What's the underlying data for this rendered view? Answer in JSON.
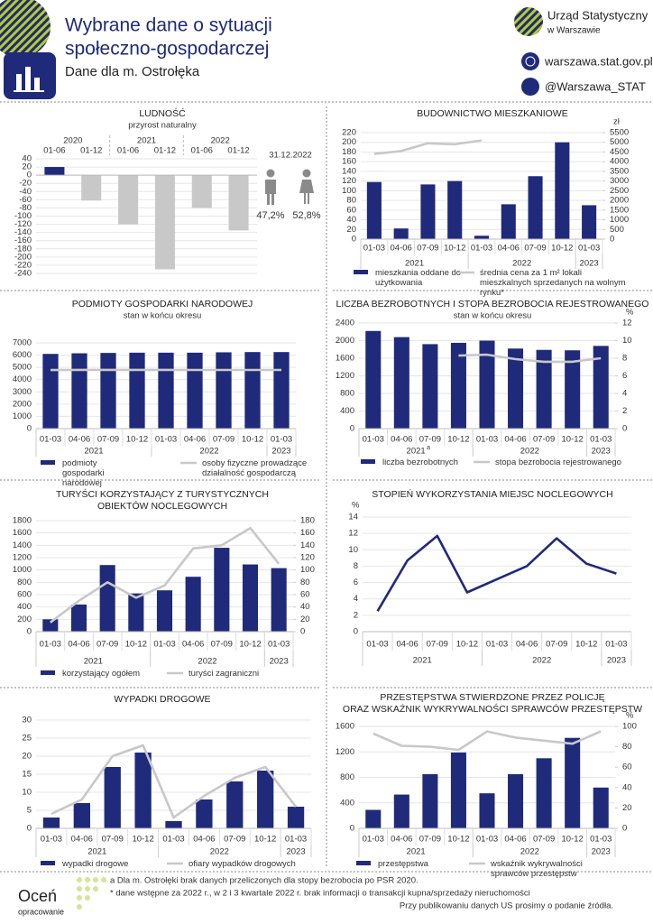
{
  "header": {
    "title": [
      "Wybrane dane o sytuacji",
      "społeczno-gospodarczej"
    ],
    "subtitle": "Dane dla m. Ostrołęka",
    "org": [
      "Urząd Statystyczny",
      "w Warszawie"
    ],
    "website": "warszawa.stat.gov.pl",
    "twitter": "@Warszawa_STAT"
  },
  "chart_data": [
    {
      "type": "bar",
      "title": "LUDNOŚĆ",
      "subtitle": "przyrost naturalny",
      "groups": [
        {
          "label": "2020",
          "categories": [
            "01-06",
            "01-12"
          ]
        },
        {
          "label": "2021",
          "categories": [
            "01-06",
            "01-12"
          ]
        },
        {
          "label": "2022",
          "categories": [
            "01-06",
            "01-12"
          ]
        }
      ],
      "values": [
        20,
        -62,
        -120,
        -230,
        -80,
        -135
      ],
      "color": "#1f2a7a",
      "negative_color": "#c8c8c8",
      "ylim": [
        -240,
        40
      ],
      "yticks": [
        40,
        20,
        0,
        -20,
        -40,
        -60,
        -80,
        -100,
        -120,
        -140,
        -160,
        -180,
        -200,
        -220,
        -240
      ],
      "grid": true,
      "date": "31.12.2022",
      "shares": {
        "values": [
          47.2,
          52.8
        ],
        "value_labels": [
          "47,2%",
          "52,8%"
        ]
      }
    },
    {
      "type": "bar-line",
      "title": "BUDOWNICTWO MIESZKANIOWE",
      "groups": [
        {
          "label": "2021",
          "categories": [
            "01-03",
            "04-06",
            "07-09",
            "10-12"
          ]
        },
        {
          "label": "2022",
          "categories": [
            "01-03",
            "04-06",
            "07-09",
            "10-12"
          ]
        },
        {
          "label": "2023",
          "categories": [
            "01-03"
          ]
        }
      ],
      "series": [
        {
          "name": "mieszkania oddane do użytkowania",
          "type": "bar",
          "color": "#1f2a7a",
          "values": [
            118,
            22,
            113,
            120,
            7,
            72,
            130,
            200,
            70
          ]
        },
        {
          "name": "średnia cena za 1 m² lokali mieszkalnych sprzedanych na wolnym rynku*",
          "type": "line",
          "axis": "y2",
          "color": "#c8c8c8",
          "values": [
            4400,
            4550,
            4950,
            4900,
            5100,
            null,
            null,
            null,
            null
          ]
        }
      ],
      "ylim": [
        0,
        220
      ],
      "yticks": [
        0,
        20,
        40,
        60,
        80,
        100,
        120,
        140,
        160,
        180,
        200,
        220
      ],
      "y2lim": [
        0,
        5500
      ],
      "y2ticks": [
        0,
        500,
        1000,
        1500,
        2000,
        2500,
        3000,
        3500,
        4000,
        4500,
        5000,
        5500
      ],
      "y2_label": "zł",
      "grid": true
    },
    {
      "type": "bar-line",
      "title": "PODMIOTY GOSPODARKI NARODOWEJ",
      "subtitle": "stan w końcu okresu",
      "groups": [
        {
          "label": "2021",
          "categories": [
            "01-03",
            "04-06",
            "07-09",
            "10-12"
          ]
        },
        {
          "label": "2022",
          "categories": [
            "01-03",
            "04-06",
            "07-09",
            "10-12"
          ]
        },
        {
          "label": "2023",
          "categories": [
            "01-03"
          ]
        }
      ],
      "series": [
        {
          "name": "podmioty gospodarki narodowej",
          "type": "bar",
          "color": "#1f2a7a",
          "values": [
            6100,
            6150,
            6180,
            6200,
            6200,
            6200,
            6230,
            6250,
            6250
          ]
        },
        {
          "name": "osoby fizyczne prowadzące działalność gospodarczą",
          "type": "line",
          "color": "#c8c8c8",
          "values": [
            4780,
            4800,
            4800,
            4800,
            4800,
            4790,
            4790,
            4790,
            4790
          ]
        }
      ],
      "ylim": [
        0,
        7000
      ],
      "yticks": [
        0,
        1000,
        2000,
        3000,
        4000,
        5000,
        6000,
        7000
      ],
      "grid": true
    },
    {
      "type": "bar-line",
      "title": "LICZBA BEZROBOTNYCH I STOPA BEZROBOCIA REJESTROWANEGO",
      "subtitle": "stan w końcu okresu",
      "groups": [
        {
          "label": "2021",
          "note": "a",
          "categories": [
            "01-03",
            "04-06",
            "07-09",
            "10-12"
          ]
        },
        {
          "label": "2022",
          "categories": [
            "01-03",
            "04-06",
            "07-09",
            "10-12"
          ]
        },
        {
          "label": "2023",
          "categories": [
            "01-03"
          ]
        }
      ],
      "series": [
        {
          "name": "liczba bezrobotnych",
          "type": "bar",
          "color": "#1f2a7a",
          "values": [
            2220,
            2080,
            1920,
            1950,
            2000,
            1820,
            1790,
            1780,
            1880
          ]
        },
        {
          "name": "stopa bezrobocia rejestrowanego",
          "type": "line",
          "axis": "y2",
          "color": "#c8c8c8",
          "values": [
            null,
            null,
            null,
            8.3,
            8.4,
            7.9,
            7.6,
            7.6,
            8.0
          ]
        }
      ],
      "ylim": [
        0,
        2400
      ],
      "yticks": [
        0,
        400,
        800,
        1200,
        1600,
        2000,
        2400
      ],
      "y2lim": [
        0,
        12
      ],
      "y2ticks": [
        0,
        2,
        4,
        6,
        8,
        10,
        12
      ],
      "y2_label": "%",
      "grid": true
    },
    {
      "type": "bar-line",
      "title": [
        "TURYŚCI KORZYSTAJĄCY Z TURYSTYCZNYCH",
        "OBIEKTÓW NOCLEGOWYCH"
      ],
      "groups": [
        {
          "label": "2021",
          "categories": [
            "01-03",
            "04-06",
            "07-09",
            "10-12"
          ]
        },
        {
          "label": "2022",
          "categories": [
            "01-03",
            "04-06",
            "07-09",
            "10-12"
          ]
        },
        {
          "label": "2023",
          "categories": [
            "01-03"
          ]
        }
      ],
      "series": [
        {
          "name": "korzystający ogółem",
          "type": "bar",
          "color": "#1f2a7a",
          "values": [
            200,
            440,
            1080,
            620,
            670,
            890,
            1360,
            1090,
            1030
          ]
        },
        {
          "name": "turyści zagraniczni",
          "type": "line",
          "axis": "y2",
          "color": "#c8c8c8",
          "values": [
            15,
            50,
            80,
            55,
            75,
            135,
            140,
            168,
            110
          ]
        }
      ],
      "ylim": [
        0,
        1800
      ],
      "yticks": [
        0,
        200,
        400,
        600,
        800,
        1000,
        1200,
        1400,
        1600,
        1800
      ],
      "y2lim": [
        0,
        180
      ],
      "y2ticks": [
        0,
        20,
        40,
        60,
        80,
        100,
        120,
        140,
        160,
        180
      ],
      "grid": true
    },
    {
      "type": "line",
      "title": "STOPIEŃ WYKORZYSTANIA MIEJSC NOCLEGOWYCH",
      "groups": [
        {
          "label": "2021",
          "categories": [
            "01-03",
            "04-06",
            "07-09",
            "10-12"
          ]
        },
        {
          "label": "2022",
          "categories": [
            "01-03",
            "04-06",
            "07-09",
            "10-12"
          ]
        },
        {
          "label": "2023",
          "categories": [
            "01-03"
          ]
        }
      ],
      "series": [
        {
          "type": "line",
          "color": "#1f2a7a",
          "values": [
            2.5,
            8.7,
            11.7,
            4.8,
            6.4,
            8.0,
            11.4,
            8.3,
            7.1
          ]
        }
      ],
      "ylim": [
        0,
        14
      ],
      "yticks": [
        0,
        2,
        4,
        6,
        8,
        10,
        12,
        14
      ],
      "y_label": "%",
      "grid": true
    },
    {
      "type": "bar-line",
      "title": "WYPADKI DROGOWE",
      "groups": [
        {
          "label": "2021",
          "categories": [
            "01-03",
            "04-06",
            "07-09",
            "10-12"
          ]
        },
        {
          "label": "2022",
          "categories": [
            "01-03",
            "04-06",
            "07-09",
            "10-12"
          ]
        },
        {
          "label": "2023",
          "categories": [
            "01-03"
          ]
        }
      ],
      "series": [
        {
          "name": "wypadki drogowe",
          "type": "bar",
          "color": "#1f2a7a",
          "values": [
            3,
            7,
            17,
            21,
            2,
            8,
            13,
            16,
            6
          ]
        },
        {
          "name": "ofiary wypadków drogowych",
          "type": "line",
          "color": "#c8c8c8",
          "values": [
            4,
            8,
            20,
            23,
            3,
            9,
            14,
            17,
            6
          ]
        }
      ],
      "ylim": [
        0,
        30
      ],
      "yticks": [
        0,
        5,
        10,
        15,
        20,
        25,
        30
      ],
      "grid": true
    },
    {
      "type": "bar-line",
      "title": [
        "PRZESTĘPSTWA STWIERDZONE PRZEZ POLICJĘ",
        "ORAZ WSKAŹNIK WYKRYWALNOŚCI SPRAWCÓW PRZESTĘPSTW"
      ],
      "groups": [
        {
          "label": "2021",
          "categories": [
            "01-03",
            "04-06",
            "07-09",
            "10-12"
          ]
        },
        {
          "label": "2022",
          "categories": [
            "01-03",
            "04-06",
            "07-09",
            "10-12"
          ]
        },
        {
          "label": "2023",
          "categories": [
            "01-03"
          ]
        }
      ],
      "series": [
        {
          "name": "przestępstwa",
          "type": "bar",
          "color": "#1f2a7a",
          "values": [
            290,
            530,
            850,
            1190,
            550,
            850,
            1100,
            1420,
            640
          ]
        },
        {
          "name": "wskaźnik wykrywalności sprawców przestępstw",
          "type": "line",
          "axis": "y2",
          "color": "#c8c8c8",
          "values": [
            93,
            81,
            80,
            77,
            95,
            89,
            86,
            83,
            95
          ]
        }
      ],
      "ylim": [
        0,
        1600
      ],
      "yticks": [
        0,
        400,
        800,
        1200,
        1600
      ],
      "y2lim": [
        0,
        100
      ],
      "y2ticks": [
        0,
        20,
        40,
        60,
        80,
        100
      ],
      "y2_label": "%",
      "grid": true
    }
  ],
  "footer": {
    "rate": "Oceń",
    "rate_sub": "opracowanie",
    "notes": [
      "a Dla m. Ostrołęki brak danych przeliczonych dla stopy bezrobocia po PSR 2020.",
      "* dane wstępne za 2022 r., w 2 i 3 kwartale 2022 r. brak informacji o transakcji kupna/sprzedaży nieruchomości"
    ],
    "source": "Przy publikowaniu danych US prosimy o podanie źródła."
  }
}
